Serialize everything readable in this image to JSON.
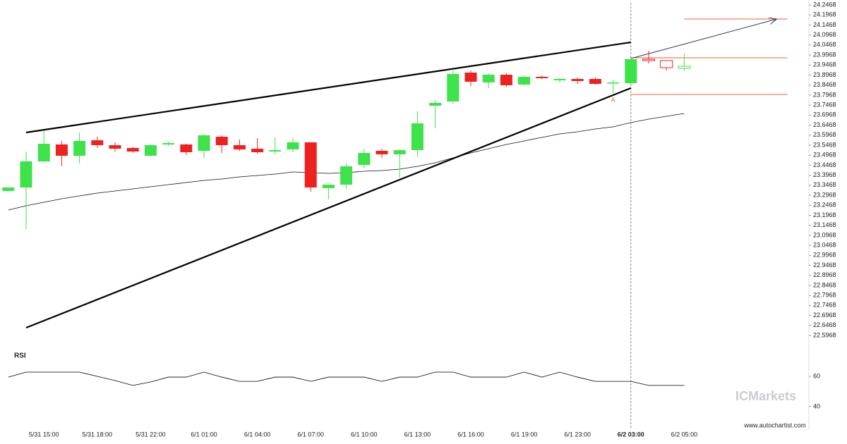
{
  "chart_data": [
    {
      "type": "candlestick",
      "categories": [
        null,
        null,
        "5/31 15:00",
        null,
        null,
        "5/31 18:00",
        null,
        null,
        "5/31 22:00",
        null,
        null,
        "6/1 01:00",
        null,
        null,
        "6/1 04:00",
        null,
        null,
        "6/1 07:00",
        null,
        null,
        "6/1 10:00",
        null,
        null,
        "6/1 13:00",
        null,
        null,
        "6/1 16:00",
        null,
        null,
        "6/1 19:00",
        null,
        null,
        "6/1 23:00",
        null,
        null,
        "6/2 03:00",
        null,
        null,
        "6/2 05:00"
      ],
      "open": [
        23.318,
        23.3356,
        23.4658,
        23.5502,
        23.4939,
        23.5713,
        23.5467,
        23.5326,
        23.4939,
        23.5502,
        23.5502,
        23.5185,
        23.5889,
        23.5467,
        23.5291,
        23.515,
        23.5256,
        23.5608,
        23.3321,
        23.3497,
        23.4482,
        23.5185,
        23.501,
        23.5221,
        23.7437,
        23.7648,
        23.909,
        23.8598,
        23.8985,
        23.8492,
        23.8879,
        23.8703,
        23.8774,
        23.8774,
        23.8563,
        23.8563,
        23.9759,
        23.9689,
        23.9302
      ],
      "high": [
        23.3356,
        23.515,
        23.6171,
        23.5678,
        23.61,
        23.5889,
        23.5608,
        23.5397,
        23.5502,
        23.5643,
        23.5537,
        23.603,
        23.5959,
        23.5748,
        23.5819,
        23.5854,
        23.5854,
        23.5608,
        23.3497,
        23.4552,
        23.5291,
        23.5291,
        23.5256,
        23.7156,
        23.7718,
        23.9266,
        23.9196,
        23.9055,
        23.9055,
        23.895,
        23.895,
        23.8809,
        23.8844,
        23.8844,
        23.8739,
        23.9829,
        24.0181,
        23.9689,
        24.004
      ],
      "low": [
        23.318,
        23.128,
        23.4623,
        23.4412,
        23.4552,
        23.5326,
        23.515,
        23.508,
        23.4904,
        23.5432,
        23.4974,
        23.4834,
        23.508,
        23.5185,
        23.5045,
        23.501,
        23.5115,
        23.3145,
        23.2758,
        23.3286,
        23.4306,
        23.4834,
        23.3849,
        23.4904,
        23.6311,
        23.7543,
        23.8422,
        23.8316,
        23.8387,
        23.8457,
        23.8774,
        23.8598,
        23.8528,
        23.8492,
        23.8035,
        23.8492,
        23.9548,
        23.9196,
        23.9196
      ],
      "close": [
        23.3356,
        23.4658,
        23.5537,
        23.4939,
        23.5678,
        23.5467,
        23.5291,
        23.515,
        23.5467,
        23.5572,
        23.5115,
        23.5959,
        23.5467,
        23.5256,
        23.5115,
        23.5221,
        23.5608,
        23.3356,
        23.3497,
        23.4412,
        23.508,
        23.501,
        23.5221,
        23.6557,
        23.7578,
        23.902,
        23.8633,
        23.8985,
        23.8457,
        23.8879,
        23.8809,
        23.8774,
        23.8668,
        23.8528,
        23.8598,
        23.9759,
        23.9689,
        23.9337,
        23.9407
      ],
      "up_color": "#3ee24a",
      "down_color": "#ee2121",
      "moving_average": [
        23.223,
        23.2441,
        23.2617,
        23.2793,
        23.2934,
        23.3075,
        23.318,
        23.3286,
        23.3391,
        23.3497,
        23.3602,
        23.3708,
        23.3778,
        23.3884,
        23.3954,
        23.4025,
        23.413,
        23.4095,
        23.406,
        23.4095,
        23.4165,
        23.42,
        23.4271,
        23.4412,
        23.4587,
        23.4834,
        23.508,
        23.5291,
        23.5502,
        23.5678,
        23.5854,
        23.603,
        23.6135,
        23.6276,
        23.6382,
        23.6593,
        23.6769,
        23.6909,
        23.705
      ],
      "trendlines": [
        {
          "start": [
            1,
            23.61
          ],
          "end": [
            35,
            24.0603
          ]
        },
        {
          "start": [
            1,
            22.6355
          ],
          "end": [
            35,
            23.8317
          ]
        }
      ],
      "arrow": {
        "start": [
          35,
          23.9794
        ],
        "end": [
          43.2,
          24.1764
        ]
      },
      "levels": [
        {
          "value": 24.1764,
          "from": 38,
          "to": 43.8
        },
        {
          "value": 23.9829,
          "from": 35,
          "to": 43.8
        },
        {
          "value": 23.8,
          "from": 35,
          "to": 43.8
        }
      ],
      "annotation": {
        "text": "A",
        "x": 34,
        "y": 23.7718
      },
      "ylim": [
        22.55,
        24.27
      ],
      "yticks": [
        24.2468,
        24.1968,
        24.1468,
        24.0968,
        24.0468,
        23.9968,
        23.9468,
        23.8968,
        23.8468,
        23.7968,
        23.7468,
        23.6968,
        23.6468,
        23.5968,
        23.5468,
        23.4968,
        23.4468,
        23.3968,
        23.3468,
        23.2968,
        23.2468,
        23.1968,
        23.1468,
        23.0968,
        23.0468,
        22.9968,
        22.9468,
        22.8968,
        22.8468,
        22.7968,
        22.7468,
        22.6968,
        22.6468,
        22.5968
      ],
      "watermark": "ICMarkets",
      "source": "www.autochartist.com"
    },
    {
      "type": "line",
      "title": "RSI",
      "values": [
        59.5,
        62.8,
        62.8,
        62.8,
        62.8,
        60.0,
        57.2,
        54.0,
        56.3,
        59.5,
        59.5,
        62.8,
        59.5,
        56.7,
        56.7,
        59.5,
        59.5,
        56.7,
        59.5,
        59.5,
        59.5,
        56.7,
        59.5,
        59.5,
        62.8,
        62.8,
        59.5,
        59.5,
        59.5,
        62.8,
        59.5,
        62.8,
        59.5,
        56.7,
        56.7,
        56.7,
        54.0,
        54.0,
        54.0
      ],
      "color": "#000000",
      "ylim": [
        30,
        80
      ],
      "yticks": [
        40,
        60
      ]
    }
  ]
}
